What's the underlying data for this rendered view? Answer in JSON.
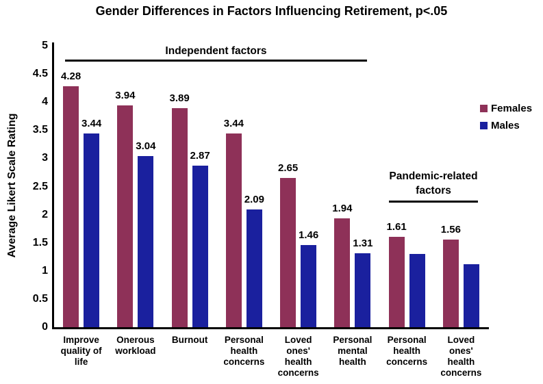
{
  "chart_data": {
    "type": "bar",
    "title": "Gender Differences in Factors Influencing Retirement, p<.05",
    "xlabel": "",
    "ylabel": "Average Likert Scale Rating",
    "ylim": [
      0,
      5
    ],
    "ytick_step": 0.5,
    "ytick_labels": [
      "5",
      "4.5",
      "4",
      "3.5",
      "3",
      "2.5",
      "2",
      "1.5",
      "1",
      "0.5",
      "0"
    ],
    "grid": false,
    "legend_position": "right",
    "categories": [
      "Improve quality of life",
      "Onerous workload",
      "Burnout",
      "Personal health concerns",
      "Loved ones' health concerns",
      "Personal mental health",
      "Personal health concerns",
      "Loved ones' health concerns"
    ],
    "category_display": [
      "Improve\nquality of\nlife",
      "Onerous\nworkload",
      "Burnout",
      "Personal\nhealth\nconcerns",
      "Loved\nones'\nhealth\nconcerns",
      "Personal\nmental\nhealth",
      "Personal\nhealth\nconcerns",
      "Loved\nones'\nhealth\nconcerns"
    ],
    "series": [
      {
        "name": "Females",
        "color": "#8E3158",
        "values": [
          4.28,
          3.94,
          3.89,
          3.44,
          2.65,
          1.94,
          1.61,
          1.56
        ],
        "data_labels": [
          "4.28",
          "3.94",
          "3.89",
          "3.44",
          "2.65",
          "1.94",
          "1.61",
          "1.56"
        ]
      },
      {
        "name": "Males",
        "color": "#1A209E",
        "values": [
          3.44,
          3.04,
          2.87,
          2.09,
          1.46,
          1.31,
          1.3,
          1.12
        ],
        "data_labels": [
          "3.44",
          "3.04",
          "2.87",
          "2.09",
          "1.46",
          "1.31",
          "",
          ""
        ],
        "note": "last two bars shown without data labels; values estimated from bar heights"
      }
    ],
    "annotations": [
      {
        "text": "Independent factors",
        "display": "Independent factors",
        "spans_categories": [
          1,
          6
        ]
      },
      {
        "text": "Pandemic-related factors",
        "display": "Pandemic-related\nfactors",
        "spans_categories": [
          7,
          8
        ]
      }
    ],
    "colors": {
      "females": "#8E3158",
      "males": "#1A209E",
      "axis": "#000000",
      "text": "#000000",
      "background": "#ffffff"
    }
  }
}
